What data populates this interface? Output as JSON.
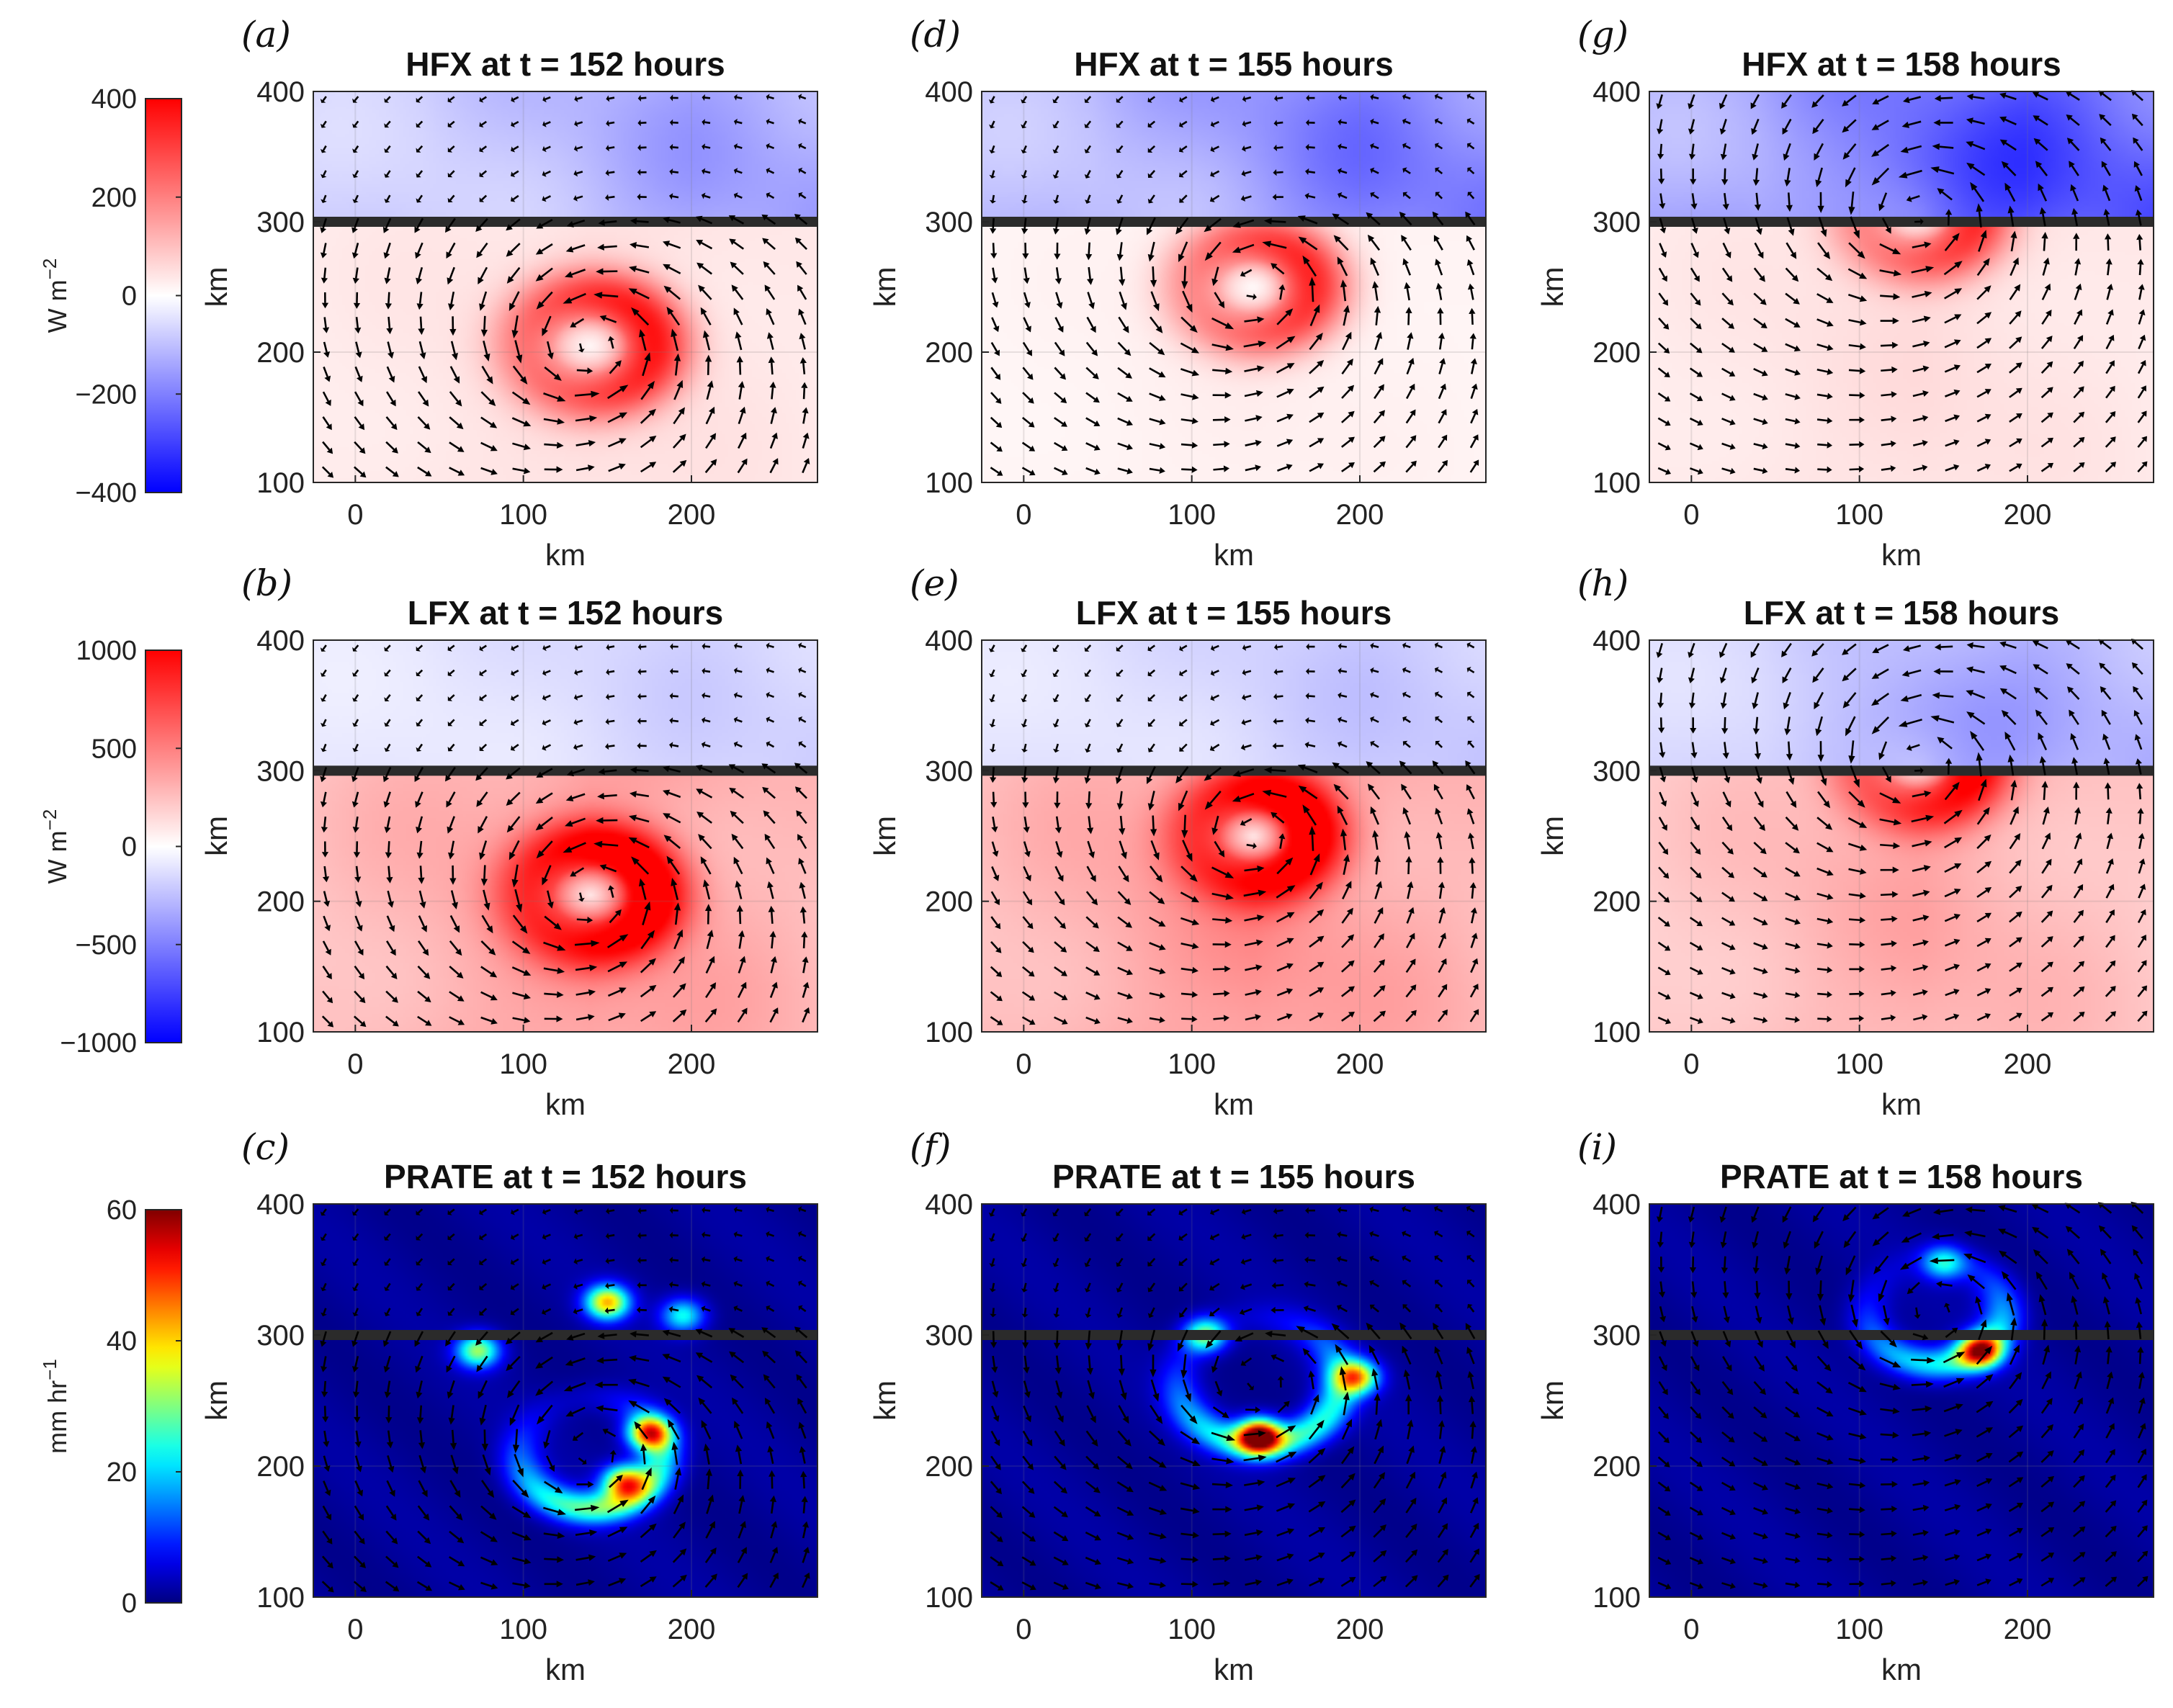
{
  "chart_data": {
    "type": "heatmap",
    "layout": "3 rows x 3 columns of map panels with quiver (wind vector) overlay",
    "x_ticks": [
      0,
      100,
      200
    ],
    "y_ticks": [
      100,
      200,
      300,
      400
    ],
    "xlim": [
      -25,
      275
    ],
    "ylim": [
      100,
      400
    ],
    "xlabel": "km",
    "ylabel": "km",
    "boundary_line_y": 300,
    "grid": true,
    "rows": [
      {
        "field": "HFX",
        "colormap": "blue-white-red",
        "colorbar": {
          "ticks": [
            "400",
            "200",
            "0",
            "−200",
            "−400"
          ],
          "range": [
            -400,
            400
          ],
          "label_main": "W m",
          "label_sup": "−2"
        },
        "panels": [
          {
            "label": "(a)",
            "title": "HFX at t = 152 hours",
            "time_hours": 152,
            "vortex_center_km": [
              140,
              205
            ],
            "ring_radius_km": 38,
            "ring_peak": 330,
            "lower_background": 40,
            "upper_background": -120
          },
          {
            "label": "(d)",
            "title": "HFX at t = 155 hours",
            "time_hours": 155,
            "vortex_center_km": [
              137,
              250
            ],
            "ring_radius_km": 35,
            "ring_peak": 320,
            "lower_background": 20,
            "upper_background": -170
          },
          {
            "label": "(g)",
            "title": "HFX at t = 158 hours",
            "time_hours": 158,
            "vortex_center_km": [
              135,
              305
            ],
            "ring_radius_km": 34,
            "ring_peak": 300,
            "lower_background": 40,
            "upper_background": -220
          }
        ]
      },
      {
        "field": "LFX",
        "colormap": "blue-white-red",
        "colorbar": {
          "ticks": [
            "1000",
            "500",
            "0",
            "−500",
            "−1000"
          ],
          "range": [
            -1000,
            1000
          ],
          "label_main": "W m",
          "label_sup": "−2"
        },
        "panels": [
          {
            "label": "(b)",
            "title": "LFX at t = 152 hours",
            "time_hours": 152,
            "vortex_center_km": [
              140,
              205
            ],
            "ring_radius_km": 38,
            "ring_peak": 850,
            "lower_background": 320,
            "upper_background": -150
          },
          {
            "label": "(e)",
            "title": "LFX at t = 155 hours",
            "time_hours": 155,
            "vortex_center_km": [
              137,
              250
            ],
            "ring_radius_km": 35,
            "ring_peak": 850,
            "lower_background": 330,
            "upper_background": -180
          },
          {
            "label": "(h)",
            "title": "LFX at t = 158 hours",
            "time_hours": 158,
            "vortex_center_km": [
              135,
              305
            ],
            "ring_radius_km": 34,
            "ring_peak": 800,
            "lower_background": 260,
            "upper_background": -250
          }
        ]
      },
      {
        "field": "PRATE",
        "colormap": "jet",
        "colorbar": {
          "ticks": [
            "60",
            "40",
            "20",
            "0"
          ],
          "range": [
            0,
            60
          ],
          "label_main": "mm hr",
          "label_sup": "−1"
        },
        "panels": [
          {
            "label": "(c)",
            "title": "PRATE at t = 152 hours",
            "time_hours": 152,
            "vortex_center_km": [
              140,
              210
            ],
            "ring_radius_km": 42,
            "ring_peak": 28,
            "hotspots": [
              {
                "x": 150,
                "y": 325,
                "v": 40
              },
              {
                "x": 195,
                "y": 315,
                "v": 22
              },
              {
                "x": 73,
                "y": 288,
                "v": 30
              },
              {
                "x": 175,
                "y": 225,
                "v": 42
              },
              {
                "x": 160,
                "y": 188,
                "v": 38
              }
            ]
          },
          {
            "label": "(f)",
            "title": "PRATE at t = 155 hours",
            "time_hours": 155,
            "vortex_center_km": [
              140,
              265
            ],
            "ring_radius_km": 48,
            "ring_peak": 25,
            "hotspots": [
              {
                "x": 140,
                "y": 223,
                "v": 55
              },
              {
                "x": 198,
                "y": 268,
                "v": 38
              },
              {
                "x": 108,
                "y": 300,
                "v": 28
              }
            ]
          },
          {
            "label": "(i)",
            "title": "PRATE at t = 158 hours",
            "time_hours": 158,
            "vortex_center_km": [
              145,
              318
            ],
            "ring_radius_km": 40,
            "ring_peak": 22,
            "hotspots": [
              {
                "x": 172,
                "y": 288,
                "v": 42
              },
              {
                "x": 150,
                "y": 355,
                "v": 20
              }
            ]
          }
        ]
      }
    ]
  }
}
